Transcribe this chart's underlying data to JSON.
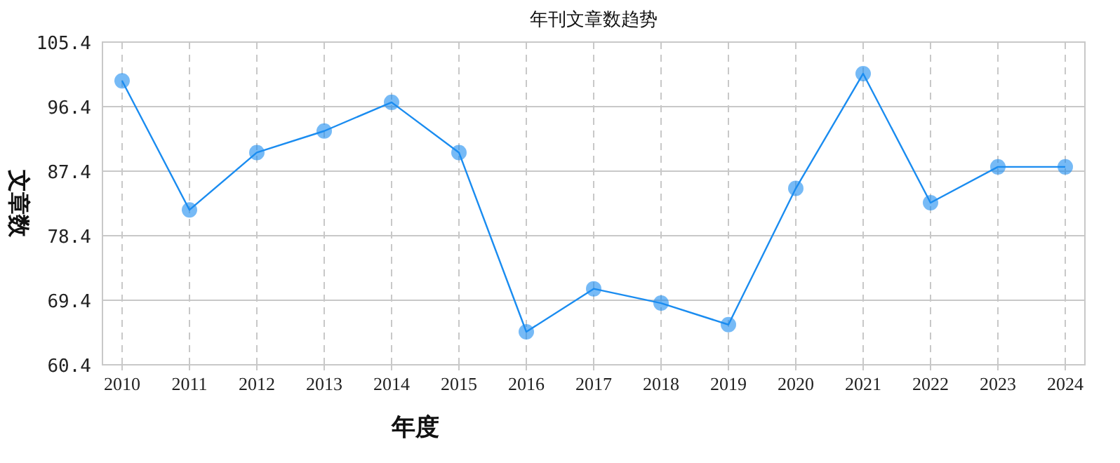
{
  "chart_data": {
    "type": "line",
    "title": "年刊文章数趋势",
    "xlabel": "年度",
    "ylabel": "文章数",
    "categories": [
      "2010",
      "2011",
      "2012",
      "2013",
      "2014",
      "2015",
      "2016",
      "2017",
      "2018",
      "2019",
      "2020",
      "2021",
      "2022",
      "2023",
      "2024"
    ],
    "series": [
      {
        "color": "#1a8cf0",
        "values": [
          100,
          82,
          90,
          93,
          97,
          90,
          65,
          71,
          69,
          66,
          85,
          101,
          83,
          88,
          88
        ]
      }
    ],
    "ylim": [
      60.4,
      105.4
    ],
    "yticks": [
      60.4,
      69.4,
      78.4,
      87.4,
      96.4,
      105.4
    ],
    "grid": true,
    "marker": "circle",
    "line_style": "solid"
  }
}
